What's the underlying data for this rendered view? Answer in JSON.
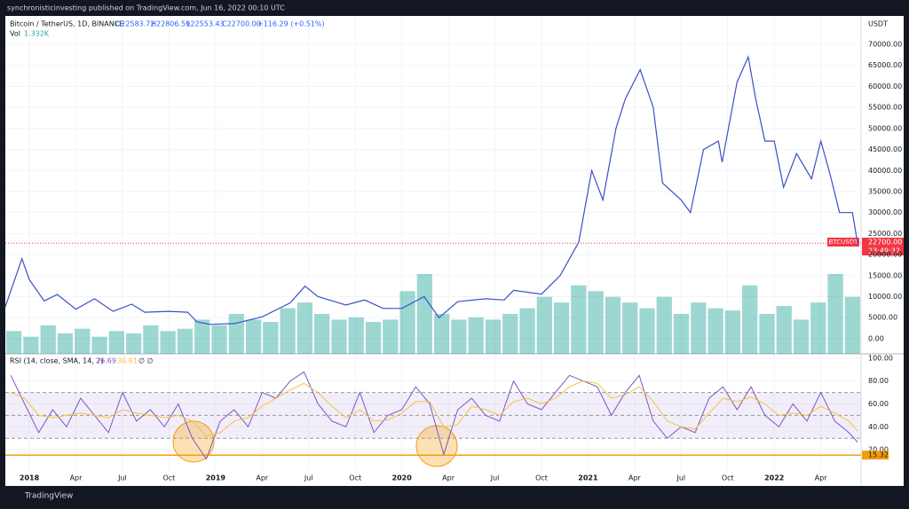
{
  "header": {
    "publisher": "synchronisticinvesting published on TradingView.com, Jun 16, 2022 00:10 UTC",
    "brand": "TradingView"
  },
  "legend": {
    "symbol": "Bitcoin / TetherUS, 1D, BINANCE",
    "open": "O22583.72",
    "high": "H22806.59",
    "low": "L22553.43",
    "close": "C22700.00",
    "change": "+116.29 (+0.51%)",
    "vol_name": "Vol",
    "vol_value": "1.332K",
    "currency": "USDT",
    "tag_symbol": "BTCUSDT",
    "countdown": "23:49:32"
  },
  "chart_data": [
    {
      "type": "line",
      "color": "#3a4fc7",
      "grid": true,
      "x": [
        2017.87,
        2017.96,
        2018.0,
        2018.08,
        2018.15,
        2018.25,
        2018.35,
        2018.45,
        2018.55,
        2018.62,
        2018.75,
        2018.85,
        2018.9,
        2018.97,
        2019.1,
        2019.25,
        2019.4,
        2019.48,
        2019.55,
        2019.7,
        2019.8,
        2019.9,
        2020.0,
        2020.12,
        2020.2,
        2020.3,
        2020.45,
        2020.55,
        2020.6,
        2020.75,
        2020.85,
        2020.95,
        2021.02,
        2021.08,
        2021.15,
        2021.2,
        2021.28,
        2021.35,
        2021.4,
        2021.5,
        2021.55,
        2021.62,
        2021.7,
        2021.72,
        2021.8,
        2021.86,
        2021.9,
        2021.95,
        2022.0,
        2022.05,
        2022.12,
        2022.2,
        2022.25,
        2022.3,
        2022.35,
        2022.42,
        2022.447
      ],
      "values": [
        7500,
        19000,
        14000,
        9000,
        10500,
        7000,
        9500,
        6500,
        8200,
        6300,
        6500,
        6300,
        4000,
        3400,
        3600,
        5200,
        8500,
        12500,
        10000,
        8000,
        9200,
        7200,
        7200,
        10000,
        5000,
        8800,
        9500,
        9200,
        11500,
        10600,
        15000,
        23000,
        40000,
        33000,
        50000,
        57000,
        64000,
        55000,
        37000,
        33000,
        30000,
        45000,
        47000,
        42000,
        61000,
        67000,
        57000,
        47000,
        47000,
        36000,
        44000,
        38000,
        47000,
        39000,
        30000,
        30000,
        22700
      ],
      "last": {
        "value": 22700,
        "label": "22700.00"
      },
      "volume": {
        "color": "#26a69a",
        "values": [
          20,
          15,
          25,
          18,
          22,
          15,
          20,
          18,
          25,
          20,
          22,
          30,
          25,
          35,
          30,
          28,
          40,
          45,
          35,
          30,
          32,
          28,
          30,
          55,
          70,
          35,
          30,
          32,
          30,
          35,
          40,
          50,
          45,
          60,
          55,
          50,
          45,
          40,
          50,
          35,
          45,
          40,
          38,
          60,
          35,
          42,
          30,
          45,
          70,
          50
        ]
      },
      "xlim": [
        2017.871,
        2022.466
      ],
      "ylim": [
        -3600,
        76750
      ],
      "yticks": [
        {
          "value": 0,
          "label": "0.00"
        },
        {
          "value": 5000,
          "label": "5000.00"
        },
        {
          "value": 10000,
          "label": "10000.00"
        },
        {
          "value": 15000,
          "label": "15000.00"
        },
        {
          "value": 20000,
          "label": "20000.00"
        },
        {
          "value": 25000,
          "label": "25000.00"
        },
        {
          "value": 30000,
          "label": "30000.00"
        },
        {
          "value": 35000,
          "label": "35000.00"
        },
        {
          "value": 40000,
          "label": "40000.00"
        },
        {
          "value": 45000,
          "label": "45000.00"
        },
        {
          "value": 50000,
          "label": "50000.00"
        },
        {
          "value": 55000,
          "label": "55000.00"
        },
        {
          "value": 60000,
          "label": "60000.00"
        },
        {
          "value": 65000,
          "label": "65000.00"
        },
        {
          "value": 70000,
          "label": "70000.00"
        }
      ]
    },
    {
      "type": "line",
      "title": "RSI (14, close, SMA, 14, 2)",
      "grid": true,
      "x": [
        2017.9,
        2017.975,
        2018.05,
        2018.125,
        2018.2,
        2018.275,
        2018.35,
        2018.425,
        2018.5,
        2018.575,
        2018.65,
        2018.725,
        2018.8,
        2018.875,
        2018.95,
        2019.025,
        2019.1,
        2019.175,
        2019.25,
        2019.325,
        2019.4,
        2019.475,
        2019.55,
        2019.625,
        2019.7,
        2019.775,
        2019.85,
        2019.925,
        2020.0,
        2020.075,
        2020.15,
        2020.225,
        2020.3,
        2020.375,
        2020.45,
        2020.525,
        2020.6,
        2020.675,
        2020.75,
        2020.825,
        2020.9,
        2020.975,
        2021.05,
        2021.125,
        2021.2,
        2021.275,
        2021.35,
        2021.425,
        2021.5,
        2021.575,
        2021.65,
        2021.725,
        2021.8,
        2021.875,
        2021.95,
        2022.025,
        2022.1,
        2022.175,
        2022.25,
        2022.325,
        2022.4,
        2022.447
      ],
      "series": [
        {
          "name": "26.69",
          "color": "#7e57c2",
          "values": [
            85,
            60,
            35,
            55,
            40,
            65,
            50,
            35,
            70,
            45,
            55,
            40,
            60,
            30,
            12,
            45,
            55,
            40,
            70,
            65,
            80,
            88,
            60,
            45,
            40,
            70,
            35,
            50,
            55,
            75,
            60,
            16,
            55,
            65,
            50,
            45,
            80,
            60,
            55,
            70,
            85,
            80,
            75,
            50,
            70,
            85,
            45,
            30,
            40,
            35,
            65,
            75,
            55,
            75,
            50,
            40,
            60,
            45,
            70,
            45,
            35,
            26.69
          ]
        },
        {
          "name": "36.61",
          "color": "#f5c242",
          "values": [
            70,
            65,
            50,
            48,
            50,
            52,
            50,
            48,
            55,
            52,
            50,
            48,
            50,
            45,
            32,
            35,
            45,
            48,
            58,
            65,
            72,
            78,
            70,
            58,
            48,
            55,
            45,
            46,
            52,
            62,
            62,
            40,
            42,
            58,
            55,
            50,
            62,
            65,
            60,
            65,
            75,
            80,
            78,
            65,
            68,
            75,
            62,
            45,
            40,
            38,
            52,
            65,
            62,
            66,
            60,
            50,
            52,
            50,
            58,
            52,
            45,
            36.61
          ]
        }
      ],
      "extra": "∅ ∅",
      "bands": [
        30,
        50,
        70
      ],
      "band_fill": "#7e57c2",
      "level": {
        "value": 15.32,
        "label": "15.32",
        "color": "#f59d0b"
      },
      "xlim": [
        2017.871,
        2022.466
      ],
      "ylim": [
        2.3,
        103.8
      ],
      "yticks": [
        {
          "value": 20,
          "label": "20.00"
        },
        {
          "value": 40,
          "label": "40.00"
        },
        {
          "value": 60,
          "label": "60.00"
        },
        {
          "value": 80,
          "label": "80.00"
        },
        {
          "value": 100,
          "label": "100.00"
        }
      ],
      "xticks": [
        2018,
        {
          "value": 2018.25,
          "label": "Apr"
        },
        {
          "value": 2018.5,
          "label": "Jul"
        },
        {
          "value": 2018.75,
          "label": "Oct"
        },
        2019,
        {
          "value": 2019.25,
          "label": "Apr"
        },
        {
          "value": 2019.5,
          "label": "Jul"
        },
        {
          "value": 2019.75,
          "label": "Oct"
        },
        2020,
        {
          "value": 2020.25,
          "label": "Apr"
        },
        {
          "value": 2020.5,
          "label": "Jul"
        },
        {
          "value": 2020.75,
          "label": "Oct"
        },
        2021,
        {
          "value": 2021.25,
          "label": "Apr"
        },
        {
          "value": 2021.5,
          "label": "Jul"
        },
        {
          "value": 2021.75,
          "label": "Oct"
        },
        2022,
        {
          "value": 2022.25,
          "label": "Apr"
        }
      ]
    }
  ]
}
